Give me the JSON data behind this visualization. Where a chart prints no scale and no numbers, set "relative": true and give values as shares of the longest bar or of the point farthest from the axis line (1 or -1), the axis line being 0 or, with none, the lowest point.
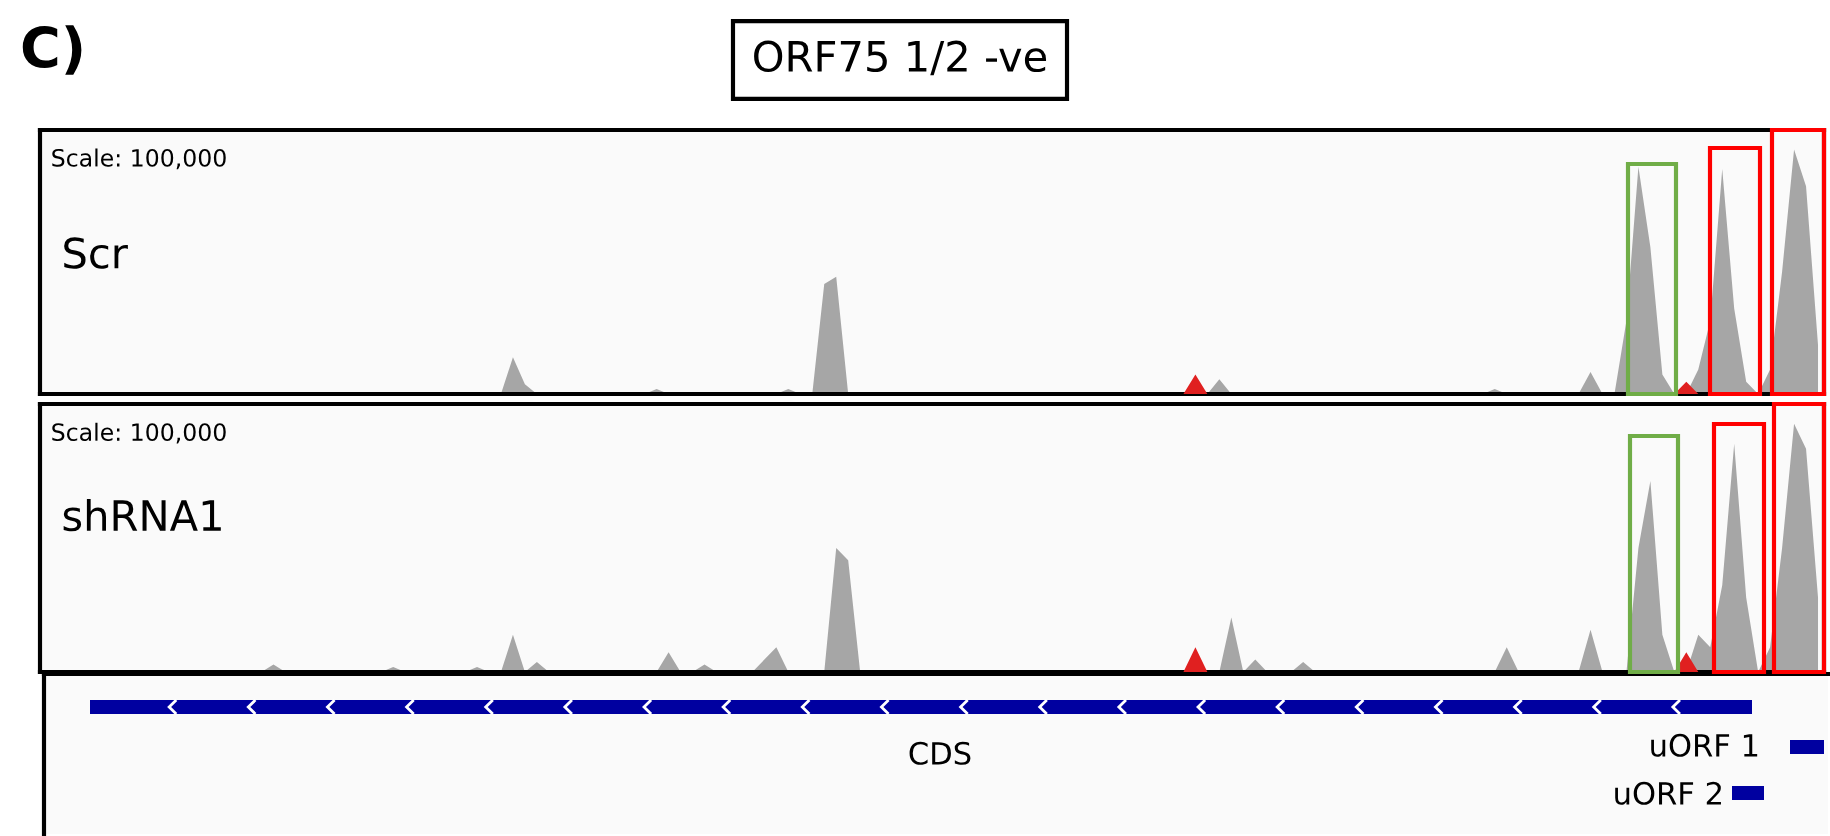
{
  "chart_data": [
    {
      "type": "area",
      "title": "ORF75 1/2 -ve",
      "subtitle": "Scr",
      "annotations": [
        "C)",
        "Scale: 100,000"
      ],
      "relative": true,
      "categories": [
        null,
        null,
        null,
        null,
        null,
        null,
        null,
        null,
        null,
        null,
        null,
        null,
        null,
        null,
        null,
        null,
        null,
        null,
        null,
        null,
        null,
        null,
        null,
        null,
        null,
        null,
        null,
        null,
        null,
        null,
        null,
        null,
        null,
        null,
        null,
        null,
        null,
        null,
        null,
        null,
        null,
        null,
        null,
        null,
        null,
        null,
        null,
        null,
        null,
        null,
        null,
        null,
        null,
        null,
        null,
        null,
        null,
        null,
        null,
        null,
        null,
        null,
        null,
        null,
        null,
        null,
        null,
        null,
        null,
        null,
        null,
        null,
        null,
        null,
        null,
        null,
        null,
        null,
        null,
        null,
        null,
        null,
        null,
        null,
        null,
        null,
        null,
        null,
        null,
        null,
        null,
        null,
        null,
        null,
        null,
        null,
        null,
        null,
        null,
        null,
        null,
        null,
        null,
        null,
        null,
        null,
        null,
        null,
        null,
        null,
        null,
        null,
        null,
        null,
        null,
        null,
        null,
        null,
        null,
        null,
        null,
        null,
        null,
        null,
        null,
        null,
        null,
        null,
        null,
        null,
        null,
        null,
        null,
        null,
        null,
        null,
        null,
        null,
        null,
        null,
        null,
        null,
        null,
        null,
        null,
        null,
        null,
        null,
        null
      ],
      "series": [
        {
          "color": "#a6a6a6",
          "values": [
            0,
            0,
            0,
            0,
            0,
            0,
            0,
            0,
            0,
            0,
            0,
            0,
            0,
            0,
            0,
            0,
            0,
            0,
            0,
            0,
            0,
            0,
            0,
            0,
            0,
            0,
            0,
            0,
            0,
            0,
            0,
            0,
            0,
            0,
            0,
            0,
            0,
            0,
            0,
            0.15,
            0.04,
            0,
            0,
            0,
            0,
            0,
            0,
            0,
            0,
            0,
            0,
            0.02,
            0,
            0,
            0,
            0,
            0,
            0,
            0,
            0,
            0,
            0,
            0.02,
            0,
            0,
            0.45,
            0.48,
            0,
            0,
            0,
            0,
            0,
            0,
            0,
            0,
            0,
            0,
            0,
            0,
            0,
            0,
            0,
            0,
            0,
            0,
            0,
            0,
            0,
            0,
            0,
            0,
            0,
            0,
            0,
            0,
            0,
            0,
            0,
            0.06,
            0,
            0,
            0,
            0,
            0,
            0,
            0,
            0,
            0,
            0,
            0,
            0,
            0,
            0,
            0,
            0,
            0,
            0,
            0,
            0,
            0,
            0,
            0.02,
            0,
            0,
            0,
            0,
            0,
            0,
            0,
            0.09,
            0,
            0,
            0.3,
            0.93,
            0.6,
            0.08,
            0,
            0,
            0.1,
            0.3,
            0.92,
            0.35,
            0.05,
            0,
            0.1,
            0.5,
            1.0,
            0.85,
            0.2
          ]
        },
        {
          "color": "#e02020",
          "values": [
            0,
            0,
            0,
            0,
            0,
            0,
            0,
            0,
            0,
            0,
            0,
            0,
            0,
            0,
            0,
            0,
            0,
            0,
            0,
            0,
            0,
            0,
            0,
            0,
            0,
            0,
            0,
            0,
            0,
            0,
            0,
            0,
            0,
            0,
            0,
            0,
            0,
            0,
            0,
            0,
            0,
            0,
            0,
            0,
            0,
            0,
            0,
            0,
            0,
            0,
            0,
            0,
            0,
            0,
            0,
            0,
            0,
            0,
            0,
            0,
            0,
            0,
            0,
            0,
            0,
            0,
            0,
            0,
            0,
            0,
            0,
            0,
            0,
            0,
            0,
            0,
            0,
            0,
            0,
            0,
            0,
            0,
            0,
            0,
            0,
            0,
            0,
            0,
            0,
            0,
            0,
            0,
            0,
            0,
            0,
            0,
            0.08,
            0,
            0,
            0,
            0,
            0,
            0,
            0,
            0,
            0,
            0,
            0,
            0,
            0,
            0,
            0,
            0,
            0,
            0,
            0,
            0,
            0,
            0,
            0,
            0,
            0,
            0,
            0,
            0,
            0,
            0,
            0,
            0,
            0,
            0,
            0,
            0,
            0,
            0,
            0,
            0,
            0.05,
            0,
            0,
            0,
            0,
            0,
            0,
            0,
            0,
            0,
            0,
            0
          ]
        }
      ]
    },
    {
      "type": "area",
      "subtitle": "shRNA1",
      "annotations": [
        "Scale: 100,000"
      ],
      "relative": true,
      "categories": [
        null,
        null,
        null,
        null,
        null,
        null,
        null,
        null,
        null,
        null,
        null,
        null,
        null,
        null,
        null,
        null,
        null,
        null,
        null,
        null,
        null,
        null,
        null,
        null,
        null,
        null,
        null,
        null,
        null,
        null,
        null,
        null,
        null,
        null,
        null,
        null,
        null,
        null,
        null,
        null,
        null,
        null,
        null,
        null,
        null,
        null,
        null,
        null,
        null,
        null,
        null,
        null,
        null,
        null,
        null,
        null,
        null,
        null,
        null,
        null,
        null,
        null,
        null,
        null,
        null,
        null,
        null,
        null,
        null,
        null,
        null,
        null,
        null,
        null,
        null,
        null,
        null,
        null,
        null,
        null,
        null,
        null,
        null,
        null,
        null,
        null,
        null,
        null,
        null,
        null,
        null,
        null,
        null,
        null,
        null,
        null,
        null,
        null,
        null,
        null,
        null,
        null,
        null,
        null,
        null,
        null,
        null,
        null,
        null,
        null,
        null,
        null,
        null,
        null,
        null,
        null,
        null,
        null,
        null,
        null,
        null,
        null,
        null,
        null,
        null,
        null,
        null,
        null,
        null,
        null,
        null,
        null,
        null,
        null,
        null,
        null,
        null,
        null,
        null,
        null,
        null,
        null,
        null,
        null,
        null,
        null,
        null,
        null,
        null
      ],
      "series": [
        {
          "color": "#a6a6a6",
          "values": [
            0,
            0,
            0,
            0,
            0,
            0,
            0,
            0,
            0,
            0,
            0,
            0,
            0,
            0,
            0,
            0,
            0,
            0,
            0,
            0.03,
            0,
            0,
            0,
            0,
            0,
            0,
            0,
            0,
            0,
            0.02,
            0,
            0,
            0,
            0,
            0,
            0,
            0.02,
            0,
            0,
            0.15,
            0,
            0.04,
            0,
            0,
            0,
            0,
            0,
            0,
            0,
            0,
            0,
            0,
            0.08,
            0,
            0,
            0.03,
            0,
            0,
            0,
            0,
            0.05,
            0.1,
            0,
            0,
            0,
            0,
            0.5,
            0.45,
            0,
            0,
            0,
            0,
            0,
            0,
            0,
            0,
            0,
            0,
            0,
            0,
            0,
            0,
            0,
            0,
            0,
            0,
            0,
            0,
            0,
            0,
            0,
            0,
            0,
            0,
            0,
            0,
            0,
            0,
            0,
            0.22,
            0,
            0.05,
            0,
            0,
            0,
            0.04,
            0,
            0,
            0,
            0,
            0,
            0,
            0,
            0,
            0,
            0,
            0,
            0,
            0,
            0,
            0,
            0,
            0.1,
            0,
            0,
            0,
            0,
            0,
            0,
            0.17,
            0,
            0,
            0,
            0.5,
            0.77,
            0.15,
            0,
            0,
            0.15,
            0.1,
            0.35,
            0.92,
            0.3,
            0,
            0.1,
            0.5,
            1.0,
            0.9,
            0.3
          ]
        },
        {
          "color": "#e02020",
          "values": [
            0,
            0,
            0,
            0,
            0,
            0,
            0,
            0,
            0,
            0,
            0,
            0,
            0,
            0,
            0,
            0,
            0,
            0,
            0,
            0,
            0,
            0,
            0,
            0,
            0,
            0,
            0,
            0,
            0,
            0,
            0,
            0,
            0,
            0,
            0,
            0,
            0,
            0,
            0,
            0,
            0,
            0,
            0,
            0,
            0,
            0,
            0,
            0,
            0,
            0,
            0,
            0,
            0,
            0,
            0,
            0,
            0,
            0,
            0,
            0,
            0,
            0,
            0,
            0,
            0,
            0,
            0,
            0,
            0,
            0,
            0,
            0,
            0,
            0,
            0,
            0,
            0,
            0,
            0,
            0,
            0,
            0,
            0,
            0,
            0,
            0,
            0,
            0,
            0,
            0,
            0,
            0,
            0,
            0,
            0,
            0,
            0.1,
            0,
            0,
            0,
            0,
            0,
            0,
            0,
            0,
            0,
            0,
            0,
            0,
            0,
            0,
            0,
            0,
            0,
            0,
            0,
            0,
            0,
            0,
            0,
            0,
            0,
            0,
            0,
            0,
            0,
            0,
            0,
            0,
            0,
            0,
            0,
            0,
            0,
            0,
            0,
            0,
            0.08,
            0,
            0,
            0,
            0,
            0,
            0,
            0,
            0,
            0,
            0,
            0
          ]
        }
      ]
    },
    {
      "type": "other",
      "annotations": [
        "CDS",
        "uORF 1",
        "uORF 2"
      ]
    }
  ]
}
